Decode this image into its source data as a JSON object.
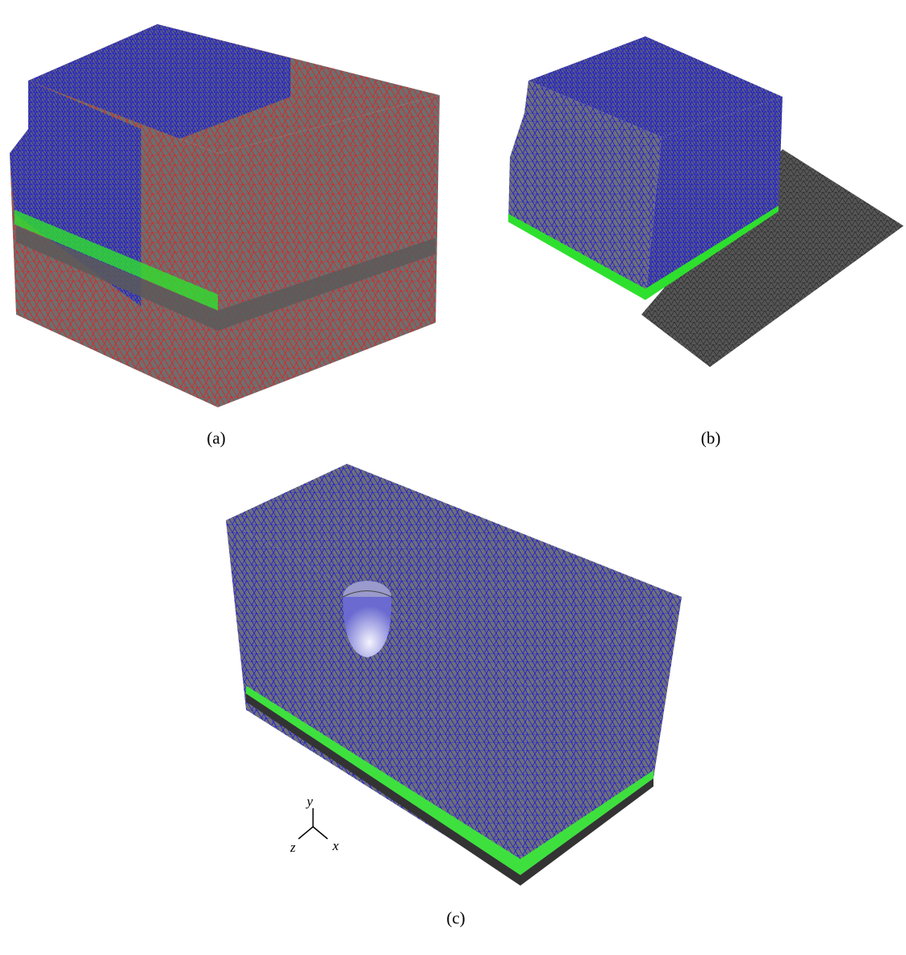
{
  "panels": [
    {
      "label": "(a)"
    },
    {
      "label": "(b)"
    },
    {
      "label": "(c)"
    }
  ],
  "axes": {
    "y": "y",
    "z": "z",
    "x": "x"
  }
}
